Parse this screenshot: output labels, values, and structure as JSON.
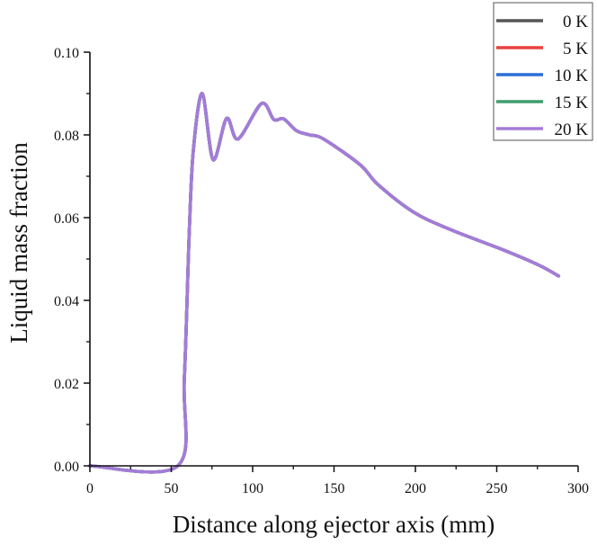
{
  "chart_data": {
    "type": "line",
    "title": "",
    "xlabel": "Distance along ejector axis (mm)",
    "ylabel": "Liquid mass fraction",
    "xlim": [
      0,
      300
    ],
    "ylim": [
      0,
      0.1
    ],
    "xticks": [
      0,
      50,
      100,
      150,
      200,
      250,
      300
    ],
    "xtick_labels": [
      "0",
      "50",
      "100",
      "150",
      "200",
      "250",
      "300"
    ],
    "yticks": [
      0,
      0.02,
      0.04,
      0.06,
      0.08,
      0.1
    ],
    "ytick_labels": [
      "0.00",
      "0.02",
      "0.04",
      "0.06",
      "0.08",
      "0.10"
    ],
    "grid": false,
    "legend_position": "top-right",
    "x": [
      0,
      54,
      58,
      61,
      63.5,
      69,
      75.7,
      84,
      91,
      105.5,
      113,
      119,
      127,
      135,
      143.6,
      166,
      177,
      199,
      221,
      254,
      276,
      288
    ],
    "series": [
      {
        "name": "0 K",
        "color": "#555555",
        "values": [
          0,
          0,
          0.021,
          0.056,
          0.076,
          0.09,
          0.074,
          0.084,
          0.079,
          0.0876,
          0.0837,
          0.0839,
          0.081,
          0.08,
          0.079,
          0.0728,
          0.068,
          0.0613,
          0.0572,
          0.0522,
          0.0485,
          0.0459
        ]
      },
      {
        "name": "5 K",
        "color": "#e8413f",
        "values": [
          0,
          0,
          0.021,
          0.056,
          0.076,
          0.09,
          0.074,
          0.084,
          0.079,
          0.0876,
          0.0837,
          0.0839,
          0.081,
          0.08,
          0.079,
          0.0728,
          0.068,
          0.0613,
          0.0572,
          0.0522,
          0.0485,
          0.0459
        ]
      },
      {
        "name": "10 K",
        "color": "#2b6fd6",
        "values": [
          0,
          0,
          0.021,
          0.056,
          0.076,
          0.09,
          0.074,
          0.084,
          0.079,
          0.0876,
          0.0837,
          0.0839,
          0.081,
          0.08,
          0.079,
          0.0728,
          0.068,
          0.0613,
          0.0572,
          0.0522,
          0.0485,
          0.0459
        ]
      },
      {
        "name": "15 K",
        "color": "#3f9e6e",
        "values": [
          0,
          0,
          0.021,
          0.056,
          0.076,
          0.09,
          0.074,
          0.084,
          0.079,
          0.0876,
          0.0837,
          0.0839,
          0.081,
          0.08,
          0.079,
          0.0728,
          0.068,
          0.0613,
          0.0572,
          0.0522,
          0.0485,
          0.0459
        ]
      },
      {
        "name": "20 K",
        "color": "#a57bd8",
        "values": [
          0,
          0,
          0.021,
          0.056,
          0.076,
          0.09,
          0.074,
          0.084,
          0.079,
          0.0876,
          0.0837,
          0.0839,
          0.081,
          0.08,
          0.079,
          0.0728,
          0.068,
          0.0613,
          0.0572,
          0.0522,
          0.0485,
          0.0459
        ]
      }
    ]
  }
}
